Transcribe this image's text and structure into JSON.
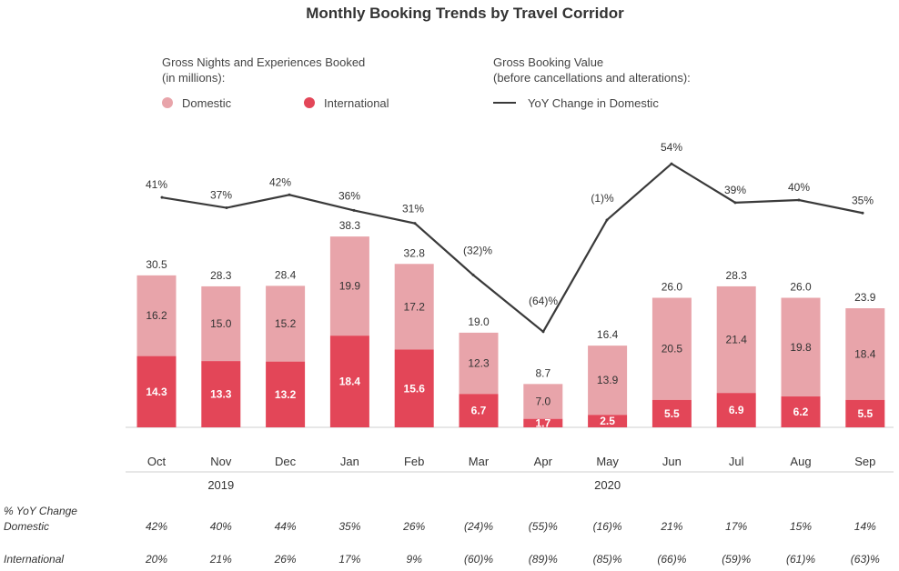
{
  "chart_data": {
    "type": "bar",
    "title": "Monthly Booking Trends by Travel Corridor",
    "legend": {
      "bars_title_line1": "Gross Nights and Experiences Booked",
      "bars_title_line2": "(in millions):",
      "line_title_line1": "Gross Booking Value",
      "line_title_line2": "(before cancellations and alterations):",
      "domestic": "Domestic",
      "international": "International",
      "line": "YoY Change in Domestic"
    },
    "colors": {
      "domestic": "#e8a4aa",
      "international": "#e34658",
      "line": "#3a3a3a"
    },
    "categories": [
      "Oct",
      "Nov",
      "Dec",
      "Jan",
      "Feb",
      "Mar",
      "Apr",
      "May",
      "Jun",
      "Jul",
      "Aug",
      "Sep"
    ],
    "year_labels": [
      {
        "label": "2019",
        "span": [
          0,
          2
        ]
      },
      {
        "label": "2020",
        "span": [
          3,
          11
        ]
      }
    ],
    "series": [
      {
        "name": "International",
        "values": [
          14.3,
          13.3,
          13.2,
          18.4,
          15.6,
          6.7,
          1.7,
          2.5,
          5.5,
          6.9,
          6.2,
          5.5
        ],
        "labels": [
          "14.3",
          "13.3",
          "13.2",
          "18.4",
          "15.6",
          "6.7",
          "1.7",
          "2.5",
          "5.5",
          "6.9",
          "6.2",
          "5.5"
        ]
      },
      {
        "name": "Domestic",
        "values": [
          16.2,
          15.0,
          15.2,
          19.9,
          17.2,
          12.3,
          7.0,
          13.9,
          20.5,
          21.4,
          19.8,
          18.4
        ],
        "labels": [
          "16.2",
          "15.0",
          "15.2",
          "19.9",
          "17.2",
          "12.3",
          "7.0",
          "13.9",
          "20.5",
          "21.4",
          "19.8",
          "18.4"
        ]
      }
    ],
    "totals": [
      30.5,
      28.3,
      28.4,
      38.3,
      32.8,
      19.0,
      8.7,
      16.4,
      26.0,
      28.3,
      26.0,
      23.9
    ],
    "totals_labels": [
      "30.5",
      "28.3",
      "28.4",
      "38.3",
      "32.8",
      "19.0",
      "8.7",
      "16.4",
      "26.0",
      "28.3",
      "26.0",
      "23.9"
    ],
    "line_series": {
      "name": "YoY Change in Domestic",
      "values": [
        41,
        37,
        42,
        36,
        31,
        -32,
        -64,
        -1,
        54,
        39,
        40,
        35
      ],
      "labels": [
        "41%",
        "37%",
        "42%",
        "36%",
        "31%",
        "(32)%",
        "(64)%",
        "(1)%",
        "54%",
        "39%",
        "40%",
        "35%"
      ]
    },
    "yoy_table": {
      "header_line1": "% YoY Change",
      "rows": [
        {
          "name": "Domestic",
          "values": [
            "42%",
            "40%",
            "44%",
            "35%",
            "26%",
            "(24)%",
            "(55)%",
            "(16)%",
            "21%",
            "17%",
            "15%",
            "14%"
          ]
        },
        {
          "name": "International",
          "values": [
            "20%",
            "21%",
            "26%",
            "17%",
            "9%",
            "(60)%",
            "(89)%",
            "(85)%",
            "(66)%",
            "(59)%",
            "(61)%",
            "(63)%"
          ]
        }
      ]
    },
    "ylim": [
      0,
      40
    ]
  }
}
